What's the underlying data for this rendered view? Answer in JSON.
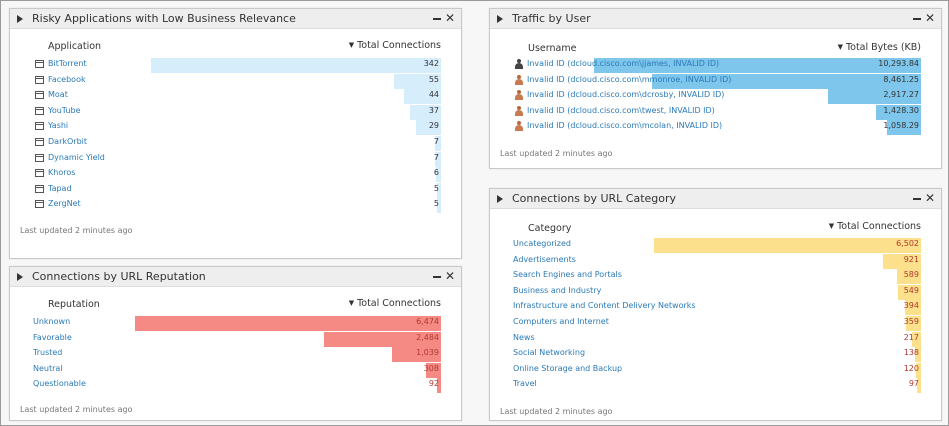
{
  "risky_apps": {
    "title": "Risky Applications with Low Business Relevance",
    "col_name": "Application",
    "col_value": "Total Connections",
    "bar_color": "#d6eefb",
    "max": 342,
    "rows": [
      {
        "name": "BitTorrent",
        "value": "342",
        "n": 342
      },
      {
        "name": "Facebook",
        "value": "55",
        "n": 55
      },
      {
        "name": "Moat",
        "value": "44",
        "n": 44
      },
      {
        "name": "YouTube",
        "value": "37",
        "n": 37
      },
      {
        "name": "Yashi",
        "value": "29",
        "n": 29
      },
      {
        "name": "DarkOrbit",
        "value": "7",
        "n": 7
      },
      {
        "name": "Dynamic Yield",
        "value": "7",
        "n": 7
      },
      {
        "name": "Khoros",
        "value": "6",
        "n": 6
      },
      {
        "name": "Tapad",
        "value": "5",
        "n": 5
      },
      {
        "name": "ZergNet",
        "value": "5",
        "n": 5
      }
    ],
    "footer": "Last updated 2 minutes ago"
  },
  "url_reputation": {
    "title": "Connections by URL Reputation",
    "col_name": "Reputation",
    "col_value": "Total Connections",
    "bar_color": "#f58a85",
    "max": 6474,
    "rows": [
      {
        "name": "Unknown",
        "value": "6,474",
        "n": 6474
      },
      {
        "name": "Favorable",
        "value": "2,484",
        "n": 2484
      },
      {
        "name": "Trusted",
        "value": "1,039",
        "n": 1039
      },
      {
        "name": "Neutral",
        "value": "308",
        "n": 308
      },
      {
        "name": "Questionable",
        "value": "92",
        "n": 92
      }
    ],
    "footer": "Last updated 2 minutes ago"
  },
  "traffic_by_user": {
    "title": "Traffic by User",
    "col_name": "Username",
    "col_value": "Total Bytes (KB)",
    "bar_color": "#7fc6ec",
    "max": 10293.84,
    "rows": [
      {
        "name": "Invalid ID (dcloud.cisco.com\\jjames, INVALID ID)",
        "value": "10,293.84",
        "n": 10293.84,
        "icon": "user-icon"
      },
      {
        "name": "Invalid ID (dcloud.cisco.com\\mmonroe, INVALID ID)",
        "value": "8,461.25",
        "n": 8461.25,
        "icon": "group-user-icon"
      },
      {
        "name": "Invalid ID (dcloud.cisco.com\\dcrosby, INVALID ID)",
        "value": "2,917.27",
        "n": 2917.27,
        "icon": "group-user-icon"
      },
      {
        "name": "Invalid ID (dcloud.cisco.com\\twest, INVALID ID)",
        "value": "1,428.30",
        "n": 1428.3,
        "icon": "group-user-icon"
      },
      {
        "name": "Invalid ID (dcloud.cisco.com\\mcolan, INVALID ID)",
        "value": "1,058.29",
        "n": 1058.29,
        "icon": "group-user-icon"
      }
    ],
    "footer": "Last updated 2 minutes ago"
  },
  "url_category": {
    "title": "Connections by URL Category",
    "col_name": "Category",
    "col_value": "Total Connections",
    "bar_color": "#fce08b",
    "max": 6502,
    "rows": [
      {
        "name": "Uncategorized",
        "value": "6,502",
        "n": 6502
      },
      {
        "name": "Advertisements",
        "value": "921",
        "n": 921
      },
      {
        "name": "Search Engines and Portals",
        "value": "589",
        "n": 589
      },
      {
        "name": "Business and Industry",
        "value": "549",
        "n": 549
      },
      {
        "name": "Infrastructure and Content Delivery Networks",
        "value": "394",
        "n": 394
      },
      {
        "name": "Computers and Internet",
        "value": "359",
        "n": 359
      },
      {
        "name": "News",
        "value": "217",
        "n": 217
      },
      {
        "name": "Social Networking",
        "value": "138",
        "n": 138
      },
      {
        "name": "Online Storage and Backup",
        "value": "120",
        "n": 120
      },
      {
        "name": "Travel",
        "value": "97",
        "n": 97
      }
    ],
    "footer": "Last updated 2 minutes ago"
  },
  "value_color_emphasis": "#b03a2e"
}
